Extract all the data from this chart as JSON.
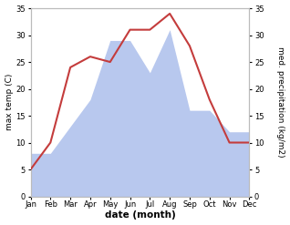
{
  "months": [
    "Jan",
    "Feb",
    "Mar",
    "Apr",
    "May",
    "Jun",
    "Jul",
    "Aug",
    "Sep",
    "Oct",
    "Nov",
    "Dec"
  ],
  "temperature": [
    5,
    10,
    24,
    26,
    25,
    31,
    31,
    34,
    28,
    18,
    10,
    10
  ],
  "precipitation": [
    8,
    8,
    13,
    18,
    29,
    29,
    23,
    31,
    16,
    16,
    12,
    12
  ],
  "temp_color": "#c43c3c",
  "precip_color": "#b8c8ee",
  "ylim_left": [
    0,
    35
  ],
  "ylim_right": [
    0,
    35
  ],
  "yticks": [
    0,
    5,
    10,
    15,
    20,
    25,
    30,
    35
  ],
  "ylabel_left": "max temp (C)",
  "ylabel_right": "med. precipitation (kg/m2)",
  "xlabel": "date (month)",
  "figsize": [
    3.18,
    2.47
  ],
  "dpi": 100
}
